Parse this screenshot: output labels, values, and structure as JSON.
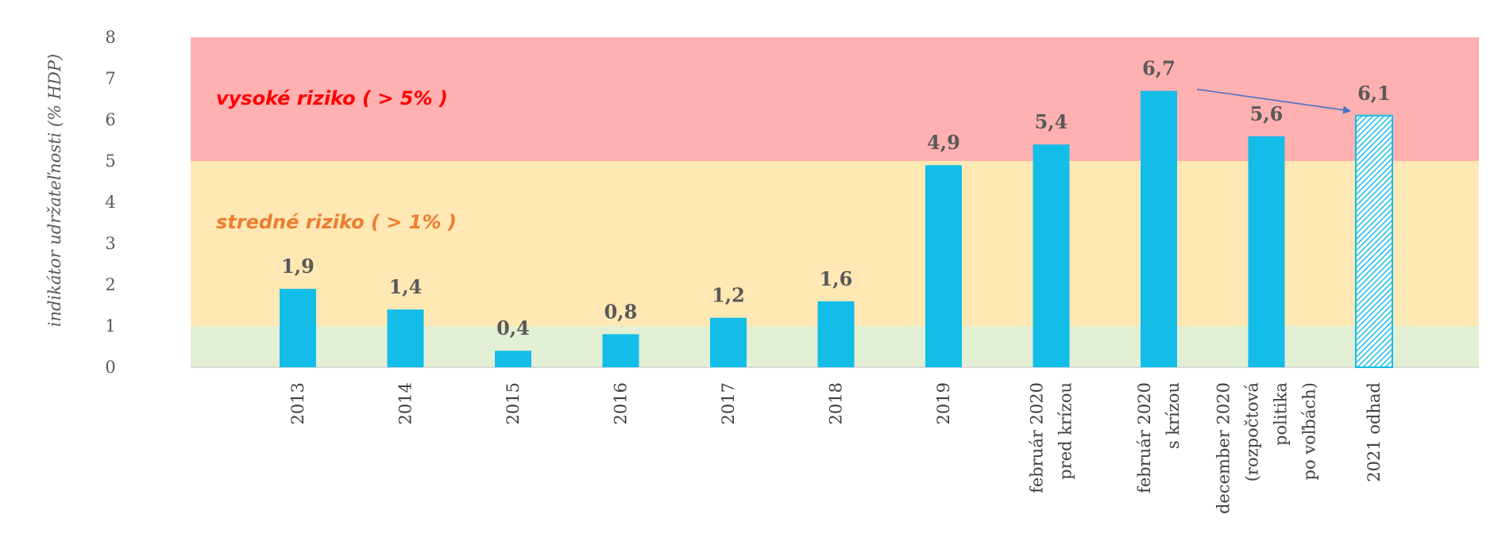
{
  "chart_data": {
    "type": "bar",
    "ylabel": "indikátor udržateľnosti (% HDP)",
    "ylim": [
      0,
      8
    ],
    "yticks": [
      0,
      1,
      2,
      3,
      4,
      5,
      6,
      7,
      8
    ],
    "categories": [
      [
        "2013"
      ],
      [
        "2014"
      ],
      [
        "2015"
      ],
      [
        "2016"
      ],
      [
        "2017"
      ],
      [
        "2018"
      ],
      [
        "2019"
      ],
      [
        "február 2020",
        "pred krízou"
      ],
      [
        "február 2020",
        "s krízou"
      ],
      [
        "december 2020",
        "(rozpočtová",
        "politika",
        "po voľbách)"
      ],
      [
        "2021 odhad"
      ]
    ],
    "values": [
      1.9,
      1.4,
      0.4,
      0.8,
      1.2,
      1.6,
      4.9,
      5.4,
      6.7,
      5.6,
      6.1
    ],
    "value_labels": [
      "1,9",
      "1,4",
      "0,4",
      "0,8",
      "1,2",
      "1,6",
      "4,9",
      "5,4",
      "6,7",
      "5,6",
      "6,1"
    ],
    "estimate_index": 10,
    "bar_color": "#13BDE8",
    "risk_zones": [
      {
        "from": 5,
        "to": 8,
        "color": "#FFB0B0",
        "label": "vysoké riziko ( > 5% )",
        "label_color": "#FF0000"
      },
      {
        "from": 1,
        "to": 5,
        "color": "#FFE8B4",
        "label": "stredné riziko ( > 1% )",
        "label_color": "#ED7D31"
      },
      {
        "from": 0,
        "to": 1,
        "color": "#E2EFD4",
        "label": "",
        "label_color": ""
      }
    ],
    "annotation": {
      "type": "arrow",
      "from_index": 8,
      "to_index": 10,
      "color": "#4472C4"
    },
    "grid": false
  }
}
